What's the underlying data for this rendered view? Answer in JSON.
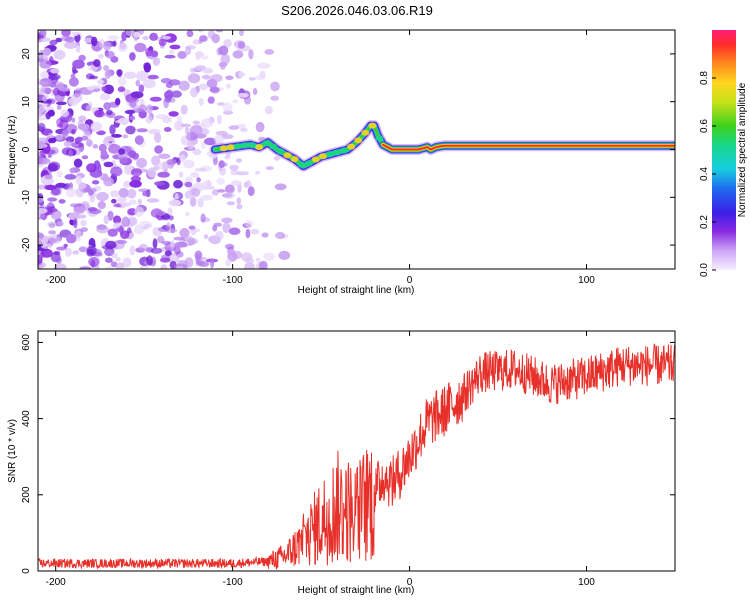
{
  "title": "S206.2026.046.03.06.R19",
  "chart_data": [
    {
      "type": "heatmap",
      "name": "spectrogram",
      "xlabel": "Height of straight line (km)",
      "ylabel": "Frequency (Hz)",
      "xlim": [
        -210,
        150
      ],
      "ylim": [
        -25,
        25
      ],
      "xticks": [
        -200,
        -100,
        0,
        100
      ],
      "xtick_labels": [
        "-200",
        "-100",
        "0",
        "100"
      ],
      "yticks": [
        -20,
        -10,
        0,
        10,
        20
      ],
      "ytick_labels": [
        "-20",
        "-10",
        "0",
        "10",
        "20"
      ],
      "ridge": {
        "x": [
          -110,
          -100,
          -90,
          -85,
          -80,
          -75,
          -70,
          -65,
          -60,
          -55,
          -50,
          -45,
          -40,
          -35,
          -30,
          -25,
          -22,
          -20,
          -18,
          -15,
          -10,
          -5,
          0,
          5,
          10,
          12,
          15,
          20,
          30,
          60,
          90,
          120,
          150
        ],
        "y": [
          0,
          0.5,
          1,
          0.5,
          1.5,
          0,
          -1,
          -2,
          -3.5,
          -2.5,
          -1.5,
          -1,
          -0.5,
          0,
          1.5,
          3.5,
          5,
          5,
          3,
          1,
          0,
          0,
          0,
          0,
          0.5,
          0,
          0.5,
          0.8,
          0.8,
          0.8,
          0.8,
          0.8,
          0.8
        ]
      },
      "colorbar": {
        "label": "Normalized spectral amplitude",
        "range": [
          0,
          1
        ],
        "ticks": [
          0.0,
          0.2,
          0.4,
          0.6,
          0.8
        ],
        "tick_labels": [
          "0.0",
          "0.2",
          "0.4",
          "0.6",
          "0.8"
        ]
      }
    },
    {
      "type": "line",
      "name": "snr",
      "xlabel": "Height of straight line (km)",
      "ylabel": "SNR (10 * v/v)",
      "xlim": [
        -210,
        150
      ],
      "ylim": [
        0,
        630
      ],
      "xticks": [
        -200,
        -100,
        0,
        100
      ],
      "xtick_labels": [
        "-200",
        "-100",
        "0",
        "100"
      ],
      "yticks": [
        0,
        200,
        400,
        600
      ],
      "ytick_labels": [
        "0",
        "200",
        "400",
        "600"
      ],
      "series": [
        {
          "name": "SNR",
          "color": "#e8302a",
          "x": [
            -210,
            -150,
            -100,
            -80,
            -70,
            -60,
            -50,
            -40,
            -30,
            -20,
            -15,
            -10,
            -5,
            0,
            10,
            20,
            30,
            40,
            60,
            80,
            100,
            120,
            150
          ],
          "y": [
            20,
            20,
            20,
            25,
            40,
            80,
            130,
            170,
            150,
            200,
            250,
            230,
            260,
            300,
            390,
            420,
            460,
            520,
            530,
            490,
            510,
            540,
            540
          ]
        }
      ]
    }
  ]
}
